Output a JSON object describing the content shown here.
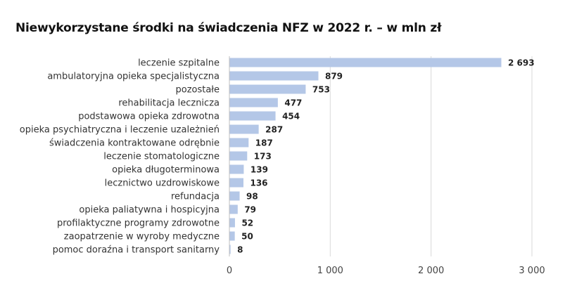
{
  "chart_data": {
    "type": "bar",
    "orientation": "horizontal",
    "title": "Niewykorzystane środki na świadczenia NFZ w 2022 r. – w mln zł",
    "categories": [
      "leczenie szpitalne",
      "ambulatoryjna opieka specjalistyczna",
      "pozostałe",
      "rehabilitacja lecznicza",
      "podstawowa opieka zdrowotna",
      "opieka psychiatryczna i leczenie uzależnień",
      "świadczenia kontraktowane odrębnie",
      "leczenie stomatologiczne",
      "opieka długoterminowa",
      "lecznictwo uzdrowiskowe",
      "refundacja",
      "opieka paliatywna i hospicyjna",
      "profilaktyczne programy zdrowotne",
      "zaopatrzenie w wyroby medyczne",
      "pomoc doraźna i transport sanitarny"
    ],
    "values": [
      2693,
      879,
      753,
      477,
      454,
      287,
      187,
      173,
      139,
      136,
      98,
      79,
      52,
      50,
      8
    ],
    "value_labels": [
      "2 693",
      "879",
      "753",
      "477",
      "454",
      "287",
      "187",
      "173",
      "139",
      "136",
      "98",
      "79",
      "52",
      "50",
      "8"
    ],
    "xlim": [
      0,
      3000
    ],
    "xticks": [
      0,
      1000,
      2000,
      3000
    ],
    "xtick_labels": [
      "0",
      "1 000",
      "2 000",
      "3 000"
    ],
    "grid": "vertical",
    "colors": {
      "bar": "#b4c7e7",
      "grid": "#d9d9d9",
      "axis": "#bfbfbf"
    }
  }
}
